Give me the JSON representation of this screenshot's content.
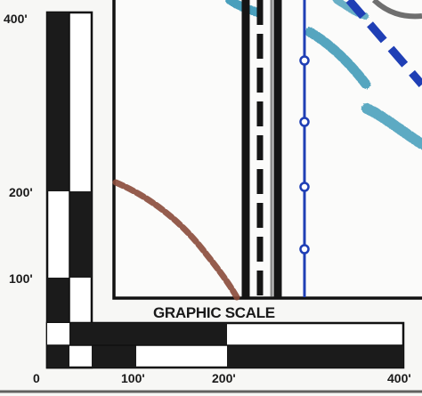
{
  "scale": {
    "title": "GRAPHIC SCALE",
    "vertical_labels": [
      "400'",
      "200'",
      "100'"
    ],
    "horizontal_labels": [
      "0",
      "100'",
      "200'",
      "400'"
    ],
    "units": "feet",
    "max_distance": 400
  },
  "colors": {
    "background": "#f7f7f5",
    "frame": "#111111",
    "bar_dark": "#1b1b1b",
    "bar_light": "#ffffff",
    "blue_line": "#1f3fb5",
    "teal_line": "#2a8fb0",
    "brown_line": "#8a4a3a"
  }
}
